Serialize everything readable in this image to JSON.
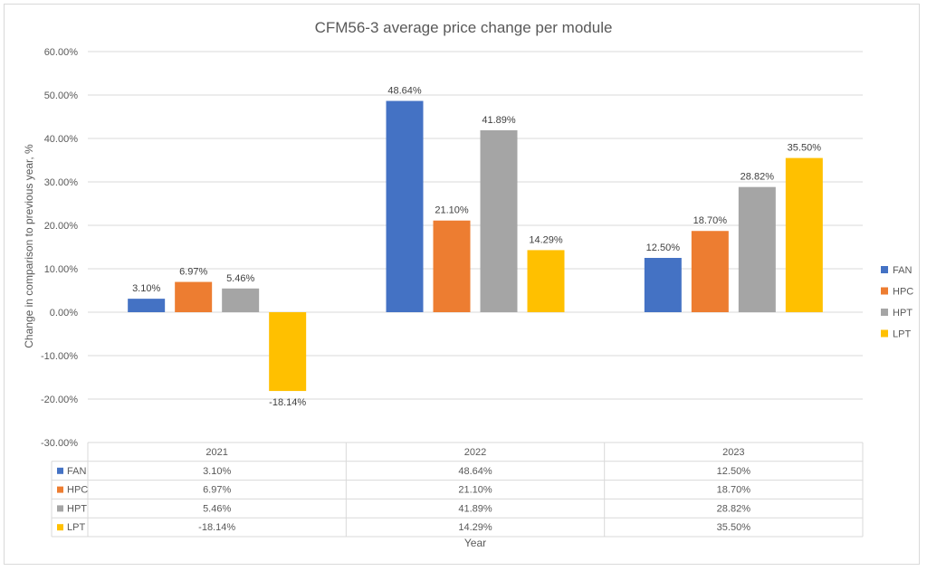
{
  "chart_data": {
    "type": "bar",
    "title": "CFM56-3 average price change per module",
    "xlabel": "Year",
    "ylabel": "Change in comparison to previous year, %",
    "categories": [
      "2021",
      "2022",
      "2023"
    ],
    "series": [
      {
        "name": "FAN",
        "color": "#4472C4",
        "values": [
          3.1,
          48.64,
          12.5
        ]
      },
      {
        "name": "HPC",
        "color": "#ED7D31",
        "values": [
          6.97,
          21.1,
          18.7
        ]
      },
      {
        "name": "HPT",
        "color": "#A5A5A5",
        "values": [
          5.46,
          41.89,
          28.82
        ]
      },
      {
        "name": "LPT",
        "color": "#FFC000",
        "values": [
          -18.14,
          14.29,
          35.5
        ]
      }
    ],
    "ylim": [
      -30,
      60
    ],
    "yticks": [
      -30,
      -20,
      -10,
      0,
      10,
      20,
      30,
      40,
      50,
      60
    ],
    "ytick_labels": [
      "-30.00%",
      "-20.00%",
      "-10.00%",
      "0.00%",
      "10.00%",
      "20.00%",
      "30.00%",
      "40.00%",
      "50.00%",
      "60.00%"
    ],
    "data_labels": [
      [
        "3.10%",
        "48.64%",
        "12.50%"
      ],
      [
        "6.97%",
        "21.10%",
        "18.70%"
      ],
      [
        "5.46%",
        "41.89%",
        "28.82%"
      ],
      [
        "-18.14%",
        "14.29%",
        "35.50%"
      ]
    ],
    "table": {
      "rows": [
        {
          "label": "FAN",
          "cells": [
            "3.10%",
            "48.64%",
            "12.50%"
          ]
        },
        {
          "label": "HPC",
          "cells": [
            "6.97%",
            "21.10%",
            "18.70%"
          ]
        },
        {
          "label": "HPT",
          "cells": [
            "5.46%",
            "41.89%",
            "28.82%"
          ]
        },
        {
          "label": "LPT",
          "cells": [
            "-18.14%",
            "14.29%",
            "35.50%"
          ]
        }
      ]
    },
    "legend_position": "right",
    "grid": true
  }
}
